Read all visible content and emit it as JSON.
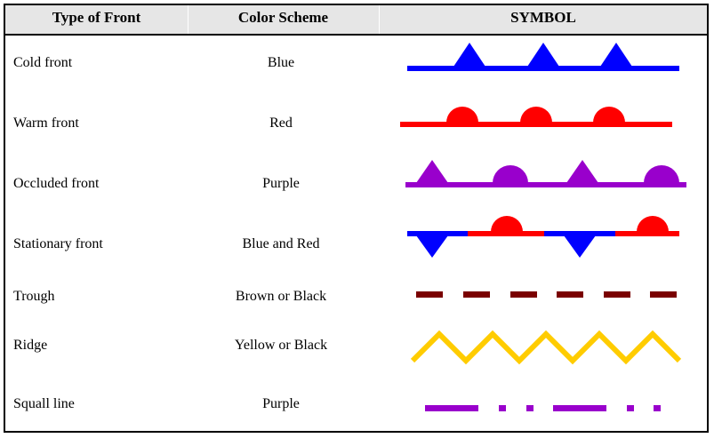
{
  "headers": {
    "type": "Type of Front",
    "color": "Color Scheme",
    "symbol": "SYMBOL"
  },
  "rows": [
    {
      "type": "Cold front",
      "color": "Blue"
    },
    {
      "type": "Warm front",
      "color": "Red"
    },
    {
      "type": "Occluded front",
      "color": "Purple"
    },
    {
      "type": "Stationary front",
      "color": "Blue and Red"
    },
    {
      "type": "Trough",
      "color": "Brown or Black"
    },
    {
      "type": "Ridge",
      "color": "Yellow or Black"
    },
    {
      "type": "Squall line",
      "color": "Purple"
    }
  ],
  "colors": {
    "blue": "#0000ff",
    "red": "#ff0000",
    "purple": "#9900cc",
    "brown": "#7a0000",
    "yellow": "#ffcc00",
    "header_bg": "#e6e6e6"
  }
}
